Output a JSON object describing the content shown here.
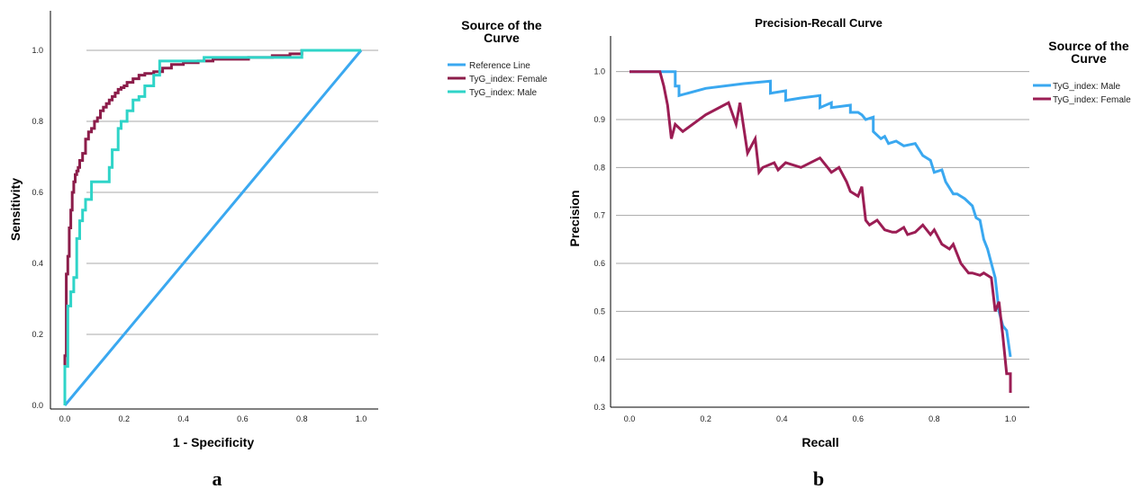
{
  "chart_data": [
    {
      "type": "line",
      "panel_label": "a",
      "title": "",
      "xlabel": "1 - Specificity",
      "ylabel": "Sensitivity",
      "xlim": [
        0,
        1
      ],
      "ylim": [
        0,
        1
      ],
      "xticks": [
        "0.0",
        "0.2",
        "0.4",
        "0.6",
        "0.8",
        "1.0"
      ],
      "yticks": [
        "0.0",
        "0.2",
        "0.4",
        "0.6",
        "0.8",
        "1.0"
      ],
      "grid": "horizontal",
      "legend": {
        "title": "Source of the Curve",
        "placement": "right"
      },
      "series": [
        {
          "name": "Reference Line",
          "color": "#3AA8F0",
          "x": [
            0,
            1
          ],
          "y": [
            0,
            1
          ]
        },
        {
          "name": "TyG_index: Female",
          "color": "#8C1D4A",
          "x": [
            0,
            0,
            0.005,
            0.005,
            0.01,
            0.01,
            0.015,
            0.015,
            0.02,
            0.02,
            0.025,
            0.025,
            0.03,
            0.03,
            0.035,
            0.035,
            0.04,
            0.04,
            0.045,
            0.045,
            0.05,
            0.05,
            0.06,
            0.06,
            0.07,
            0.07,
            0.08,
            0.08,
            0.09,
            0.09,
            0.1,
            0.1,
            0.11,
            0.11,
            0.12,
            0.12,
            0.13,
            0.13,
            0.14,
            0.14,
            0.15,
            0.15,
            0.16,
            0.16,
            0.17,
            0.17,
            0.18,
            0.18,
            0.19,
            0.19,
            0.2,
            0.2,
            0.21,
            0.21,
            0.23,
            0.23,
            0.25,
            0.25,
            0.27,
            0.27,
            0.3,
            0.3,
            0.33,
            0.33,
            0.36,
            0.36,
            0.4,
            0.4,
            0.45,
            0.45,
            0.5,
            0.5,
            0.56,
            0.56,
            0.62,
            0.62,
            0.7,
            0.7,
            0.76,
            0.76,
            0.8,
            0.8,
            1.0
          ],
          "y": [
            0,
            0.14,
            0.14,
            0.37,
            0.37,
            0.42,
            0.42,
            0.5,
            0.5,
            0.55,
            0.55,
            0.6,
            0.6,
            0.63,
            0.63,
            0.65,
            0.65,
            0.66,
            0.66,
            0.67,
            0.67,
            0.69,
            0.69,
            0.71,
            0.71,
            0.75,
            0.75,
            0.77,
            0.77,
            0.78,
            0.78,
            0.8,
            0.8,
            0.81,
            0.81,
            0.83,
            0.83,
            0.84,
            0.84,
            0.85,
            0.85,
            0.86,
            0.86,
            0.87,
            0.87,
            0.88,
            0.88,
            0.89,
            0.89,
            0.895,
            0.895,
            0.9,
            0.9,
            0.91,
            0.91,
            0.92,
            0.92,
            0.93,
            0.93,
            0.935,
            0.935,
            0.94,
            0.94,
            0.95,
            0.95,
            0.96,
            0.96,
            0.965,
            0.965,
            0.97,
            0.97,
            0.975,
            0.975,
            0.975,
            0.975,
            0.98,
            0.98,
            0.985,
            0.985,
            0.99,
            0.99,
            1.0,
            1.0
          ]
        },
        {
          "name": "TyG_index: Male",
          "color": "#2FD4C8",
          "x": [
            0,
            0,
            0.01,
            0.01,
            0.02,
            0.02,
            0.03,
            0.03,
            0.04,
            0.04,
            0.05,
            0.05,
            0.06,
            0.06,
            0.07,
            0.07,
            0.09,
            0.09,
            0.15,
            0.15,
            0.16,
            0.16,
            0.18,
            0.18,
            0.19,
            0.19,
            0.21,
            0.21,
            0.23,
            0.23,
            0.25,
            0.25,
            0.27,
            0.27,
            0.3,
            0.3,
            0.32,
            0.32,
            0.47,
            0.47,
            0.8,
            0.8,
            1.0
          ],
          "y": [
            0,
            0.11,
            0.11,
            0.28,
            0.28,
            0.32,
            0.32,
            0.36,
            0.36,
            0.47,
            0.47,
            0.52,
            0.52,
            0.55,
            0.55,
            0.58,
            0.58,
            0.63,
            0.63,
            0.67,
            0.67,
            0.72,
            0.72,
            0.78,
            0.78,
            0.8,
            0.8,
            0.83,
            0.83,
            0.86,
            0.86,
            0.87,
            0.87,
            0.9,
            0.9,
            0.93,
            0.93,
            0.97,
            0.97,
            0.98,
            0.98,
            1.0,
            1.0
          ]
        }
      ]
    },
    {
      "type": "line",
      "panel_label": "b",
      "title": "Precision-Recall Curve",
      "xlabel": "Recall",
      "ylabel": "Precision",
      "xlim": [
        0,
        1
      ],
      "ylim": [
        0.3,
        1.05
      ],
      "xticks": [
        "0.0",
        "0.2",
        "0.4",
        "0.6",
        "0.8",
        "1.0"
      ],
      "yticks": [
        "0.3",
        "0.4",
        "0.5",
        "0.6",
        "0.7",
        "0.8",
        "0.9",
        "1.0"
      ],
      "grid": "horizontal",
      "legend": {
        "title": "Source of the Curve",
        "placement": "right"
      },
      "series": [
        {
          "name": "TyG_index: Male",
          "color": "#3AA8F0",
          "x": [
            0,
            0.12,
            0.12,
            0.13,
            0.13,
            0.2,
            0.3,
            0.37,
            0.37,
            0.41,
            0.41,
            0.45,
            0.5,
            0.5,
            0.53,
            0.53,
            0.58,
            0.58,
            0.6,
            0.61,
            0.62,
            0.64,
            0.64,
            0.66,
            0.67,
            0.68,
            0.7,
            0.72,
            0.75,
            0.77,
            0.79,
            0.8,
            0.82,
            0.83,
            0.85,
            0.86,
            0.88,
            0.9,
            0.91,
            0.92,
            0.93,
            0.94,
            0.96,
            0.97,
            0.98,
            0.99,
            1.0
          ],
          "y": [
            1.0,
            1.0,
            0.97,
            0.97,
            0.95,
            0.965,
            0.975,
            0.98,
            0.955,
            0.96,
            0.94,
            0.945,
            0.95,
            0.925,
            0.935,
            0.925,
            0.93,
            0.915,
            0.915,
            0.91,
            0.9,
            0.905,
            0.875,
            0.86,
            0.865,
            0.85,
            0.855,
            0.845,
            0.85,
            0.825,
            0.815,
            0.79,
            0.795,
            0.77,
            0.745,
            0.745,
            0.735,
            0.72,
            0.695,
            0.69,
            0.65,
            0.63,
            0.57,
            0.5,
            0.47,
            0.46,
            0.405
          ]
        },
        {
          "name": "TyG_index: Female",
          "color": "#9B1D54",
          "x": [
            0,
            0.08,
            0.09,
            0.1,
            0.11,
            0.12,
            0.14,
            0.2,
            0.26,
            0.28,
            0.29,
            0.31,
            0.33,
            0.34,
            0.35,
            0.38,
            0.39,
            0.41,
            0.45,
            0.5,
            0.52,
            0.53,
            0.55,
            0.57,
            0.58,
            0.6,
            0.61,
            0.62,
            0.63,
            0.65,
            0.67,
            0.69,
            0.7,
            0.72,
            0.73,
            0.75,
            0.77,
            0.79,
            0.8,
            0.82,
            0.84,
            0.85,
            0.87,
            0.88,
            0.89,
            0.9,
            0.92,
            0.93,
            0.95,
            0.96,
            0.97,
            0.98,
            0.99,
            1.0,
            1.0
          ],
          "y": [
            1.0,
            1.0,
            0.97,
            0.93,
            0.86,
            0.89,
            0.875,
            0.91,
            0.935,
            0.89,
            0.935,
            0.83,
            0.86,
            0.79,
            0.8,
            0.81,
            0.795,
            0.81,
            0.8,
            0.82,
            0.8,
            0.79,
            0.8,
            0.77,
            0.75,
            0.74,
            0.76,
            0.69,
            0.68,
            0.69,
            0.67,
            0.665,
            0.665,
            0.675,
            0.66,
            0.665,
            0.68,
            0.66,
            0.67,
            0.64,
            0.63,
            0.64,
            0.6,
            0.59,
            0.58,
            0.58,
            0.575,
            0.58,
            0.57,
            0.5,
            0.52,
            0.45,
            0.37,
            0.37,
            0.33
          ]
        }
      ]
    }
  ]
}
